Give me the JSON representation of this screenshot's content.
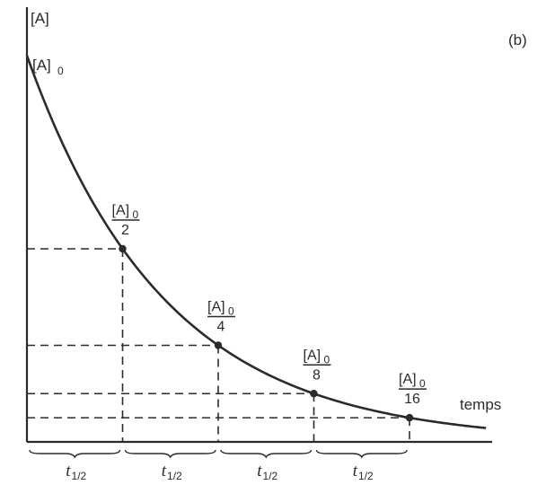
{
  "chart_data": {
    "type": "line",
    "panel_label": "(b)",
    "ylabel": "[A]",
    "xlabel": "temps",
    "y0_label": {
      "main": "[A]",
      "sub": "0"
    },
    "series": [
      {
        "x": [
          0,
          1,
          2,
          3,
          4
        ],
        "y": [
          1,
          0.5,
          0.25,
          0.125,
          0.0625
        ]
      }
    ],
    "xlim": [
      0,
      4.8
    ],
    "ylim": [
      0,
      1
    ],
    "points": [
      {
        "x": 1,
        "y": 0.5,
        "num": "[A]",
        "num_sub": "0",
        "den": "2"
      },
      {
        "x": 2,
        "y": 0.25,
        "num": "[A]",
        "num_sub": "0",
        "den": "4"
      },
      {
        "x": 3,
        "y": 0.125,
        "num": "[A]",
        "num_sub": "0",
        "den": "8"
      },
      {
        "x": 4,
        "y": 0.0625,
        "num": "[A]",
        "num_sub": "0",
        "den": "16"
      }
    ],
    "half_life_label": {
      "main": "t",
      "sub": "1/2"
    },
    "half_life_intervals": 4,
    "grid": false
  },
  "colors": {
    "ink": "#2b2b2b",
    "background": "#ffffff"
  }
}
